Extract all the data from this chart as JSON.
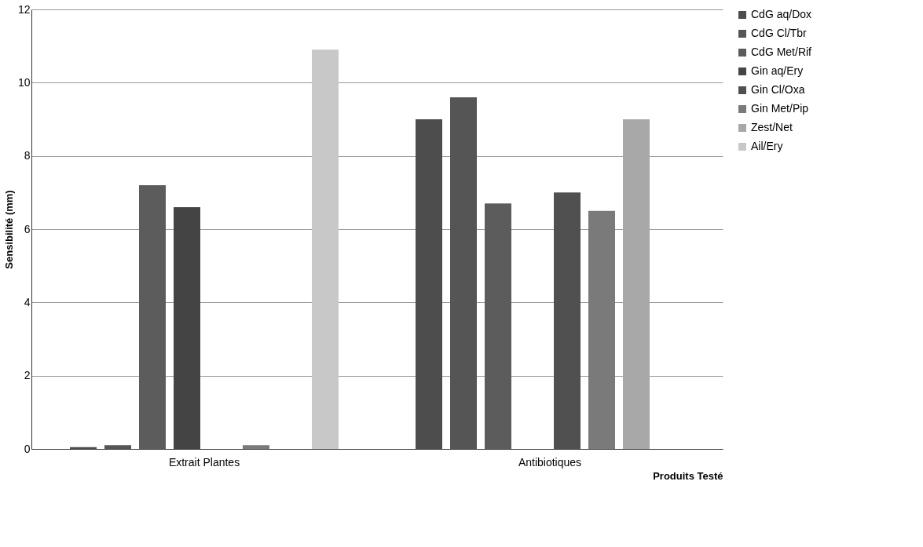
{
  "chart_data": {
    "type": "bar",
    "ylabel": "Sensibilité (mm)",
    "xlabel": "Produits Testé",
    "categories": [
      "Extrait Plantes",
      "Antibiotiques"
    ],
    "series": [
      {
        "name": "CdG aq/Dox",
        "color": "#4d4d4d",
        "values": [
          0.05,
          9.0
        ]
      },
      {
        "name": "CdG Cl/Tbr",
        "color": "#555555",
        "values": [
          0.1,
          9.6
        ]
      },
      {
        "name": "CdG Met/Rif",
        "color": "#5c5c5c",
        "values": [
          7.2,
          6.7
        ]
      },
      {
        "name": "Gin aq/Ery",
        "color": "#444444",
        "values": [
          6.6,
          0
        ]
      },
      {
        "name": "Gin Cl/Oxa",
        "color": "#505050",
        "values": [
          0,
          7.0
        ]
      },
      {
        "name": "Gin Met/Pip",
        "color": "#7a7a7a",
        "values": [
          0.1,
          6.5
        ]
      },
      {
        "name": "Zest/Net",
        "color": "#a8a8a8",
        "values": [
          0,
          9.0
        ]
      },
      {
        "name": "Ail/Ery",
        "color": "#c8c8c8",
        "values": [
          10.9,
          0
        ]
      }
    ],
    "ylim": [
      0,
      12
    ],
    "yticks": [
      0,
      2,
      4,
      6,
      8,
      10,
      12
    ],
    "grid": "y",
    "legend": "right"
  }
}
